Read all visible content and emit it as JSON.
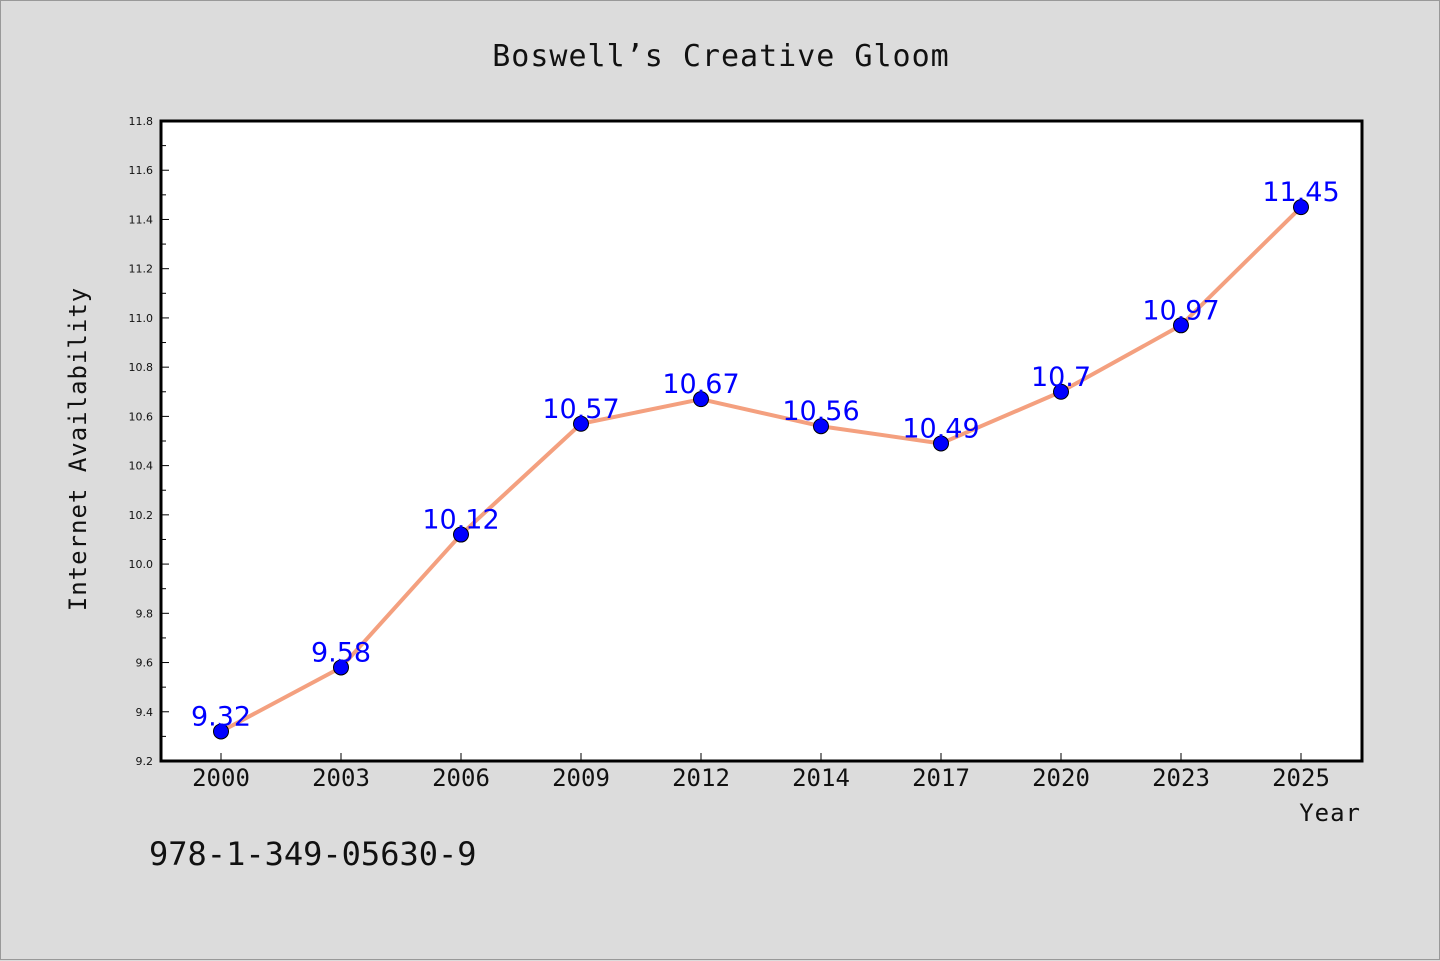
{
  "page": {
    "title": "Boswell’s Creative Gloom",
    "footer_text": "978-1-349-05630-9"
  },
  "chart_data": {
    "type": "line",
    "title": "Boswell’s Creative Gloom",
    "xlabel": "Year",
    "ylabel": "Internet Availability",
    "categories": [
      "2000",
      "2003",
      "2006",
      "2009",
      "2012",
      "2014",
      "2017",
      "2020",
      "2023",
      "2025"
    ],
    "series": [
      {
        "values": [
          9.32,
          9.58,
          10.12,
          10.57,
          10.67,
          10.56,
          10.49,
          10.7,
          10.97,
          11.45
        ],
        "labels": [
          "9.32",
          "9.58",
          "10.12",
          "10.57",
          "10.67",
          "10.56",
          "10.49",
          "10.7",
          "10.97",
          "11.45"
        ],
        "line_color": "#f4a07f",
        "marker_color": "#0000ff"
      }
    ],
    "ylim": [
      9.2,
      11.8
    ],
    "yticks": [
      "9.2",
      "9.4",
      "9.6",
      "9.8",
      "10.0",
      "10.2",
      "10.4",
      "10.6",
      "10.8",
      "11.0",
      "11.2",
      "11.4",
      "11.6",
      "11.8"
    ],
    "grid": false,
    "legend": "none"
  }
}
